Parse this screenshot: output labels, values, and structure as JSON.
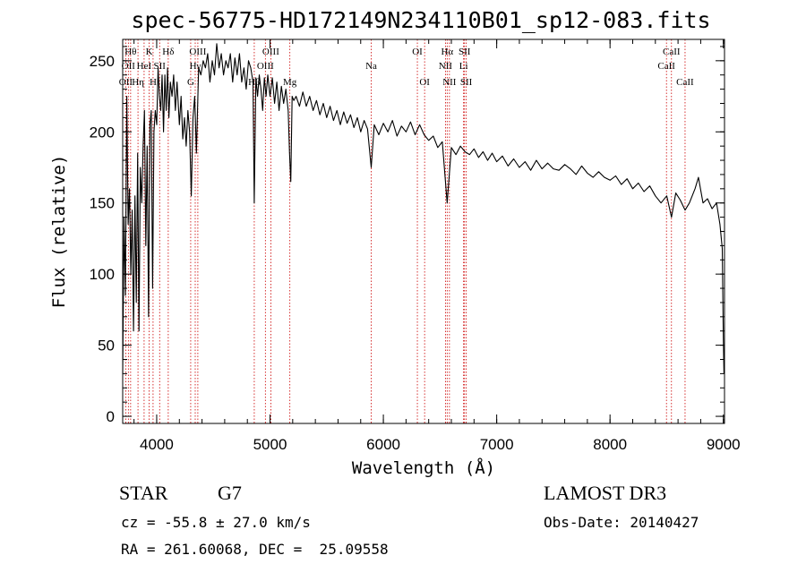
{
  "title": "spec-56775-HD172149N234110B01_sp12-083.fits",
  "info": {
    "object_class": "STAR",
    "subclass": "G7",
    "survey": "LAMOST DR3",
    "cz_line": "cz = -55.8 ± 27.0 km/s",
    "obs_date_line": "Obs-Date: 20140427",
    "radec_line": "RA = 261.60068, DEC =  25.09558"
  },
  "colors": {
    "spectrum": "#000000",
    "line_marker": "#cc0000",
    "axis": "#000000"
  },
  "chart_data": {
    "type": "line",
    "title": "spec-56775-HD172149N234110B01_sp12-083.fits",
    "xlabel": "Wavelength (Å)",
    "ylabel": "Flux (relative)",
    "xlim": [
      3700,
      9010
    ],
    "ylim": [
      -5,
      265
    ],
    "grid": false,
    "x_ticks": [
      4000,
      5000,
      6000,
      7000,
      8000,
      9000
    ],
    "y_ticks": [
      0,
      50,
      100,
      150,
      200,
      250
    ],
    "series": [
      {
        "name": "flux",
        "points": [
          [
            3700,
            30
          ],
          [
            3712,
            140
          ],
          [
            3724,
            85
          ],
          [
            3736,
            225
          ],
          [
            3748,
            135
          ],
          [
            3760,
            160
          ],
          [
            3772,
            100
          ],
          [
            3784,
            145
          ],
          [
            3796,
            60
          ],
          [
            3808,
            155
          ],
          [
            3820,
            80
          ],
          [
            3832,
            185
          ],
          [
            3844,
            60
          ],
          [
            3856,
            175
          ],
          [
            3868,
            150
          ],
          [
            3880,
            190
          ],
          [
            3892,
            215
          ],
          [
            3904,
            120
          ],
          [
            3916,
            190
          ],
          [
            3928,
            70
          ],
          [
            3940,
            205
          ],
          [
            3952,
            215
          ],
          [
            3964,
            90
          ],
          [
            3976,
            200
          ],
          [
            3988,
            215
          ],
          [
            4000,
            205
          ],
          [
            4012,
            245
          ],
          [
            4024,
            225
          ],
          [
            4036,
            215
          ],
          [
            4048,
            240
          ],
          [
            4060,
            200
          ],
          [
            4072,
            240
          ],
          [
            4084,
            215
          ],
          [
            4096,
            245
          ],
          [
            4108,
            210
          ],
          [
            4120,
            235
          ],
          [
            4135,
            225
          ],
          [
            4150,
            240
          ],
          [
            4165,
            215
          ],
          [
            4180,
            235
          ],
          [
            4200,
            205
          ],
          [
            4215,
            225
          ],
          [
            4230,
            195
          ],
          [
            4245,
            210
          ],
          [
            4260,
            190
          ],
          [
            4275,
            215
          ],
          [
            4290,
            200
          ],
          [
            4305,
            155
          ],
          [
            4320,
            210
          ],
          [
            4335,
            225
          ],
          [
            4350,
            185
          ],
          [
            4370,
            245
          ],
          [
            4390,
            240
          ],
          [
            4410,
            250
          ],
          [
            4430,
            245
          ],
          [
            4450,
            255
          ],
          [
            4470,
            235
          ],
          [
            4490,
            250
          ],
          [
            4510,
            240
          ],
          [
            4530,
            262
          ],
          [
            4550,
            245
          ],
          [
            4570,
            255
          ],
          [
            4590,
            240
          ],
          [
            4610,
            250
          ],
          [
            4630,
            245
          ],
          [
            4650,
            255
          ],
          [
            4670,
            235
          ],
          [
            4690,
            252
          ],
          [
            4710,
            240
          ],
          [
            4730,
            255
          ],
          [
            4750,
            235
          ],
          [
            4770,
            245
          ],
          [
            4790,
            230
          ],
          [
            4810,
            250
          ],
          [
            4830,
            245
          ],
          [
            4850,
            235
          ],
          [
            4861,
            150
          ],
          [
            4875,
            238
          ],
          [
            4890,
            225
          ],
          [
            4905,
            240
          ],
          [
            4920,
            230
          ],
          [
            4935,
            215
          ],
          [
            4950,
            238
          ],
          [
            4965,
            225
          ],
          [
            4980,
            240
          ],
          [
            5000,
            225
          ],
          [
            5020,
            238
          ],
          [
            5040,
            220
          ],
          [
            5060,
            235
          ],
          [
            5080,
            215
          ],
          [
            5100,
            232
          ],
          [
            5120,
            220
          ],
          [
            5140,
            230
          ],
          [
            5160,
            215
          ],
          [
            5172,
            185
          ],
          [
            5183,
            165
          ],
          [
            5195,
            225
          ],
          [
            5210,
            222
          ],
          [
            5230,
            225
          ],
          [
            5260,
            218
          ],
          [
            5290,
            228
          ],
          [
            5320,
            218
          ],
          [
            5350,
            225
          ],
          [
            5380,
            215
          ],
          [
            5410,
            222
          ],
          [
            5440,
            212
          ],
          [
            5470,
            220
          ],
          [
            5500,
            210
          ],
          [
            5530,
            218
          ],
          [
            5560,
            208
          ],
          [
            5590,
            215
          ],
          [
            5620,
            205
          ],
          [
            5650,
            214
          ],
          [
            5680,
            206
          ],
          [
            5710,
            212
          ],
          [
            5740,
            203
          ],
          [
            5770,
            210
          ],
          [
            5800,
            200
          ],
          [
            5830,
            208
          ],
          [
            5860,
            202
          ],
          [
            5893,
            175
          ],
          [
            5920,
            205
          ],
          [
            5960,
            198
          ],
          [
            6000,
            206
          ],
          [
            6040,
            200
          ],
          [
            6080,
            208
          ],
          [
            6120,
            197
          ],
          [
            6160,
            204
          ],
          [
            6200,
            200
          ],
          [
            6240,
            207
          ],
          [
            6280,
            198
          ],
          [
            6320,
            205
          ],
          [
            6360,
            198
          ],
          [
            6400,
            194
          ],
          [
            6440,
            197
          ],
          [
            6480,
            189
          ],
          [
            6520,
            193
          ],
          [
            6563,
            150
          ],
          [
            6600,
            189
          ],
          [
            6640,
            184
          ],
          [
            6680,
            190
          ],
          [
            6720,
            186
          ],
          [
            6760,
            184
          ],
          [
            6800,
            188
          ],
          [
            6840,
            182
          ],
          [
            6880,
            186
          ],
          [
            6920,
            180
          ],
          [
            6960,
            185
          ],
          [
            7000,
            179
          ],
          [
            7050,
            183
          ],
          [
            7100,
            176
          ],
          [
            7150,
            181
          ],
          [
            7200,
            175
          ],
          [
            7250,
            179
          ],
          [
            7300,
            173
          ],
          [
            7350,
            180
          ],
          [
            7400,
            174
          ],
          [
            7450,
            178
          ],
          [
            7500,
            174
          ],
          [
            7550,
            173
          ],
          [
            7600,
            177
          ],
          [
            7650,
            174
          ],
          [
            7700,
            170
          ],
          [
            7750,
            176
          ],
          [
            7800,
            171
          ],
          [
            7850,
            168
          ],
          [
            7900,
            172
          ],
          [
            7950,
            168
          ],
          [
            8000,
            166
          ],
          [
            8050,
            169
          ],
          [
            8100,
            163
          ],
          [
            8150,
            167
          ],
          [
            8200,
            160
          ],
          [
            8250,
            164
          ],
          [
            8300,
            158
          ],
          [
            8350,
            162
          ],
          [
            8400,
            155
          ],
          [
            8450,
            150
          ],
          [
            8500,
            155
          ],
          [
            8542,
            140
          ],
          [
            8580,
            157
          ],
          [
            8620,
            152
          ],
          [
            8662,
            145
          ],
          [
            8700,
            150
          ],
          [
            8750,
            160
          ],
          [
            8780,
            168
          ],
          [
            8820,
            150
          ],
          [
            8860,
            153
          ],
          [
            8900,
            146
          ],
          [
            8940,
            150
          ],
          [
            8970,
            135
          ],
          [
            8990,
            118
          ],
          [
            9000,
            55
          ],
          [
            9005,
            30
          ]
        ]
      }
    ],
    "line_markers": [
      {
        "wavelength": 3727,
        "label": "OII",
        "row": 2
      },
      {
        "wavelength": 3750,
        "label": "OII",
        "row": 1
      },
      {
        "wavelength": 3770,
        "label": "Hθ",
        "row": 0
      },
      {
        "wavelength": 3835,
        "label": "Hη",
        "row": 2
      },
      {
        "wavelength": 3889,
        "label": "HeI",
        "row": 1
      },
      {
        "wavelength": 3934,
        "label": "K",
        "row": 0
      },
      {
        "wavelength": 3968,
        "label": "H",
        "row": 2
      },
      {
        "wavelength": 4026,
        "label": "SII",
        "row": 1
      },
      {
        "wavelength": 4102,
        "label": "Hδ",
        "row": 0
      },
      {
        "wavelength": 4300,
        "label": "G",
        "row": 2
      },
      {
        "wavelength": 4340,
        "label": "Hγ",
        "row": 1
      },
      {
        "wavelength": 4363,
        "label": "OIII",
        "row": 0
      },
      {
        "wavelength": 4861,
        "label": "Hβ",
        "row": 2
      },
      {
        "wavelength": 4959,
        "label": "OIII",
        "row": 1
      },
      {
        "wavelength": 5007,
        "label": "OIII",
        "row": 0
      },
      {
        "wavelength": 5175,
        "label": "Mg",
        "row": 2
      },
      {
        "wavelength": 5893,
        "label": "Na",
        "row": 1
      },
      {
        "wavelength": 6300,
        "label": "OI",
        "row": 0
      },
      {
        "wavelength": 6364,
        "label": "OI",
        "row": 2
      },
      {
        "wavelength": 6548,
        "label": "NII",
        "row": 1
      },
      {
        "wavelength": 6563,
        "label": "Hα",
        "row": 0
      },
      {
        "wavelength": 6583,
        "label": "NII",
        "row": 2
      },
      {
        "wavelength": 6708,
        "label": "Li",
        "row": 1
      },
      {
        "wavelength": 6716,
        "label": "SII",
        "row": 0
      },
      {
        "wavelength": 6731,
        "label": "SII",
        "row": 2
      },
      {
        "wavelength": 8498,
        "label": "CaII",
        "row": 1
      },
      {
        "wavelength": 8542,
        "label": "CaII",
        "row": 0
      },
      {
        "wavelength": 8662,
        "label": "CaII",
        "row": 2
      }
    ]
  }
}
